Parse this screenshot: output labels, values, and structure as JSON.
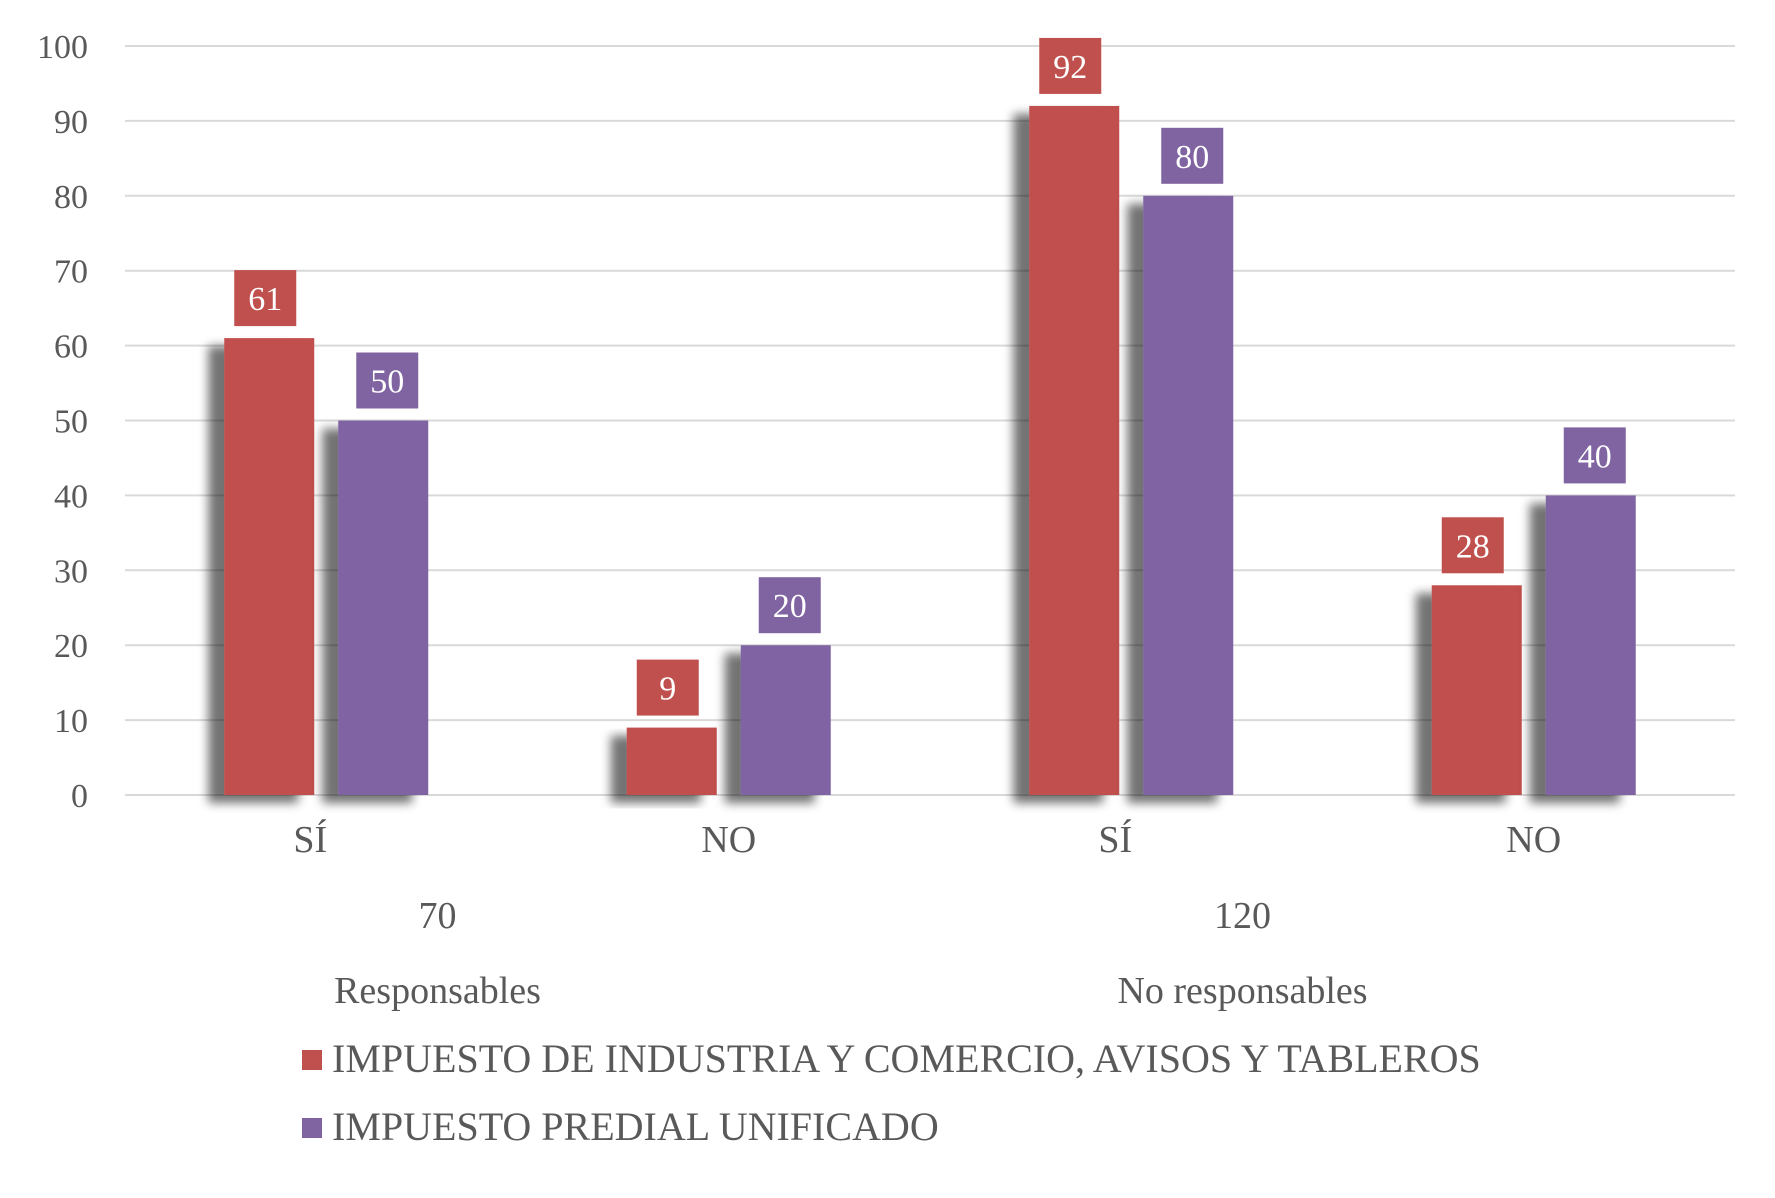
{
  "chart_data": {
    "type": "bar",
    "ylim": [
      0,
      100
    ],
    "yticks": [
      0,
      10,
      20,
      30,
      40,
      50,
      60,
      70,
      80,
      90,
      100
    ],
    "grid": true,
    "legend_position": "bottom",
    "groups": [
      {
        "label": "Responsables",
        "sublabel": "70",
        "categories": [
          "SÍ",
          "NO"
        ]
      },
      {
        "label": "No responsables",
        "sublabel": "120",
        "categories": [
          "SÍ",
          "NO"
        ]
      }
    ],
    "series": [
      {
        "name": "IMPUESTO DE INDUSTRIA Y COMERCIO, AVISOS Y TABLEROS",
        "color": "#c0504d",
        "values": [
          61,
          9,
          92,
          28
        ]
      },
      {
        "name": "IMPUESTO PREDIAL UNIFICADO",
        "color": "#8064a2",
        "values": [
          50,
          20,
          80,
          40
        ]
      }
    ]
  }
}
